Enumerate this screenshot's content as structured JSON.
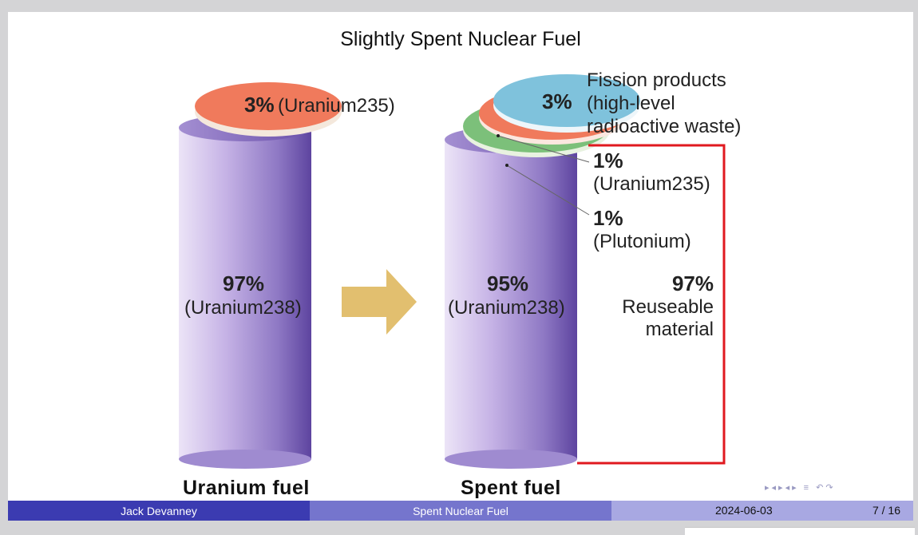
{
  "slide": {
    "title": "Slightly Spent Nuclear Fuel",
    "left_cylinder": {
      "top_pct": "3%",
      "top_label": "(Uranium235)",
      "body_pct": "97%",
      "body_label": "(Uranium238)",
      "caption": "Uranium  fuel"
    },
    "right_cylinder": {
      "top_pct": "3%",
      "body_pct": "95%",
      "body_label": "(Uranium238)",
      "caption": "Spent  fuel"
    },
    "fission": {
      "line1": "Fission products",
      "line2": "(high-level",
      "line3": "radioactive waste)"
    },
    "u235": {
      "pct": "1%",
      "label": "(Uranium235)"
    },
    "plutonium": {
      "pct": "1%",
      "label": "(Plutonium)"
    },
    "reusable": {
      "pct": "97%",
      "line1": "Reuseable",
      "line2": "material"
    },
    "colors": {
      "cylinder": "#8e78c4",
      "uranium235_disc": "#f07a5c",
      "fission_disc": "#7fc2dc",
      "plutonium_disc": "#7cc07a",
      "arrow": "#e2bf6f",
      "bracket": "#e0191f"
    }
  },
  "nav": {
    "symbols": "▸◂▸◂▸ ≡ ↶↷"
  },
  "footer": {
    "author": "Jack Devanney",
    "title": "Spent Nuclear Fuel",
    "date": "2024-06-03",
    "page": "7 / 16"
  }
}
